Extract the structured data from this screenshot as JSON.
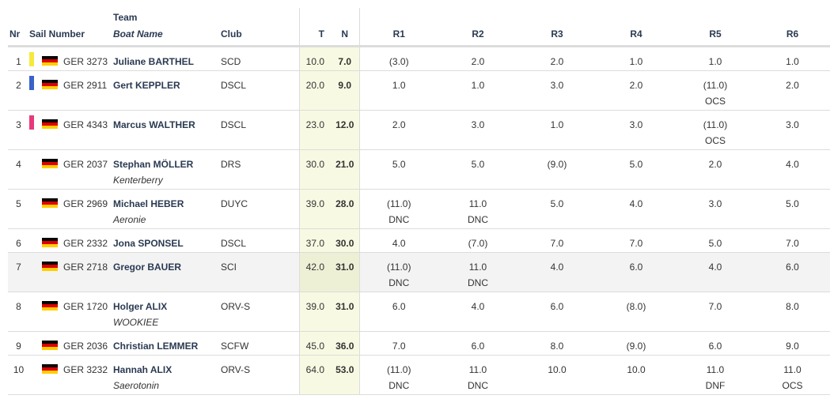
{
  "headers": {
    "nr": "Nr",
    "sail_number": "Sail Number",
    "team": "Team",
    "boat_name": "Boat Name",
    "club": "Club",
    "t": "T",
    "n": "N",
    "races": [
      "R1",
      "R2",
      "R3",
      "R4",
      "R5",
      "R6"
    ]
  },
  "colors": {
    "header_text": "#2a3a52",
    "highlight_column": "#f8f9e2",
    "row_shade": "#f3f3f3",
    "bar_yellow": "#f5ea3b",
    "bar_blue": "#3a63c8",
    "bar_pink": "#e83a7a"
  },
  "rows": [
    {
      "nr": "1",
      "bar": "#f5ea3b",
      "flag": "germany-flag",
      "sail": "GER 3273",
      "team": "Juliane BARTHEL",
      "boat": "",
      "club": "SCD",
      "t": "10.0",
      "n": "7.0",
      "races": [
        [
          "(3.0)",
          ""
        ],
        [
          "2.0",
          ""
        ],
        [
          "2.0",
          ""
        ],
        [
          "1.0",
          ""
        ],
        [
          "1.0",
          ""
        ],
        [
          "1.0",
          ""
        ]
      ]
    },
    {
      "nr": "2",
      "bar": "#3a63c8",
      "flag": "germany-flag",
      "sail": "GER 2911",
      "team": "Gert KEPPLER",
      "boat": "",
      "club": "DSCL",
      "t": "20.0",
      "n": "9.0",
      "races": [
        [
          "1.0",
          ""
        ],
        [
          "1.0",
          ""
        ],
        [
          "3.0",
          ""
        ],
        [
          "2.0",
          ""
        ],
        [
          "(11.0)",
          "OCS"
        ],
        [
          "2.0",
          ""
        ]
      ]
    },
    {
      "nr": "3",
      "bar": "#e83a7a",
      "flag": "germany-flag",
      "sail": "GER 4343",
      "team": "Marcus WALTHER",
      "boat": "",
      "club": "DSCL",
      "t": "23.0",
      "n": "12.0",
      "races": [
        [
          "2.0",
          ""
        ],
        [
          "3.0",
          ""
        ],
        [
          "1.0",
          ""
        ],
        [
          "3.0",
          ""
        ],
        [
          "(11.0)",
          "OCS"
        ],
        [
          "3.0",
          ""
        ]
      ]
    },
    {
      "nr": "4",
      "bar": "",
      "flag": "germany-flag",
      "sail": "GER 2037",
      "team": "Stephan MÖLLER",
      "boat": "Kenterberry",
      "club": "DRS",
      "t": "30.0",
      "n": "21.0",
      "races": [
        [
          "5.0",
          ""
        ],
        [
          "5.0",
          ""
        ],
        [
          "(9.0)",
          ""
        ],
        [
          "5.0",
          ""
        ],
        [
          "2.0",
          ""
        ],
        [
          "4.0",
          ""
        ]
      ]
    },
    {
      "nr": "5",
      "bar": "",
      "flag": "germany-flag",
      "sail": "GER 2969",
      "team": "Michael HEBER",
      "boat": "Aeronie",
      "club": "DUYC",
      "t": "39.0",
      "n": "28.0",
      "races": [
        [
          "(11.0)",
          "DNC"
        ],
        [
          "11.0",
          "DNC"
        ],
        [
          "5.0",
          ""
        ],
        [
          "4.0",
          ""
        ],
        [
          "3.0",
          ""
        ],
        [
          "5.0",
          ""
        ]
      ]
    },
    {
      "nr": "6",
      "bar": "",
      "flag": "germany-flag",
      "sail": "GER 2332",
      "team": "Jona SPONSEL",
      "boat": "",
      "club": "DSCL",
      "t": "37.0",
      "n": "30.0",
      "races": [
        [
          "4.0",
          ""
        ],
        [
          "(7.0)",
          ""
        ],
        [
          "7.0",
          ""
        ],
        [
          "7.0",
          ""
        ],
        [
          "5.0",
          ""
        ],
        [
          "7.0",
          ""
        ]
      ]
    },
    {
      "nr": "7",
      "bar": "",
      "flag": "germany-flag",
      "sail": "GER 2718",
      "team": "Gregor BAUER",
      "boat": "",
      "club": "SCI",
      "t": "42.0",
      "n": "31.0",
      "races": [
        [
          "(11.0)",
          "DNC"
        ],
        [
          "11.0",
          "DNC"
        ],
        [
          "4.0",
          ""
        ],
        [
          "6.0",
          ""
        ],
        [
          "4.0",
          ""
        ],
        [
          "6.0",
          ""
        ]
      ]
    },
    {
      "nr": "8",
      "bar": "",
      "flag": "germany-flag",
      "sail": "GER 1720",
      "team": "Holger ALIX",
      "boat": "WOOKIEE",
      "club": "ORV-S",
      "t": "39.0",
      "n": "31.0",
      "races": [
        [
          "6.0",
          ""
        ],
        [
          "4.0",
          ""
        ],
        [
          "6.0",
          ""
        ],
        [
          "(8.0)",
          ""
        ],
        [
          "7.0",
          ""
        ],
        [
          "8.0",
          ""
        ]
      ]
    },
    {
      "nr": "9",
      "bar": "",
      "flag": "germany-flag",
      "sail": "GER 2036",
      "team": "Christian LEMMER",
      "boat": "",
      "club": "SCFW",
      "t": "45.0",
      "n": "36.0",
      "races": [
        [
          "7.0",
          ""
        ],
        [
          "6.0",
          ""
        ],
        [
          "8.0",
          ""
        ],
        [
          "(9.0)",
          ""
        ],
        [
          "6.0",
          ""
        ],
        [
          "9.0",
          ""
        ]
      ]
    },
    {
      "nr": "10",
      "bar": "",
      "flag": "germany-flag",
      "sail": "GER 3232",
      "team": "Hannah ALIX",
      "boat": "Saerotonin",
      "club": "ORV-S",
      "t": "64.0",
      "n": "53.0",
      "races": [
        [
          "(11.0)",
          "DNC"
        ],
        [
          "11.0",
          "DNC"
        ],
        [
          "10.0",
          ""
        ],
        [
          "10.0",
          ""
        ],
        [
          "11.0",
          "DNF"
        ],
        [
          "11.0",
          "OCS"
        ]
      ]
    }
  ]
}
